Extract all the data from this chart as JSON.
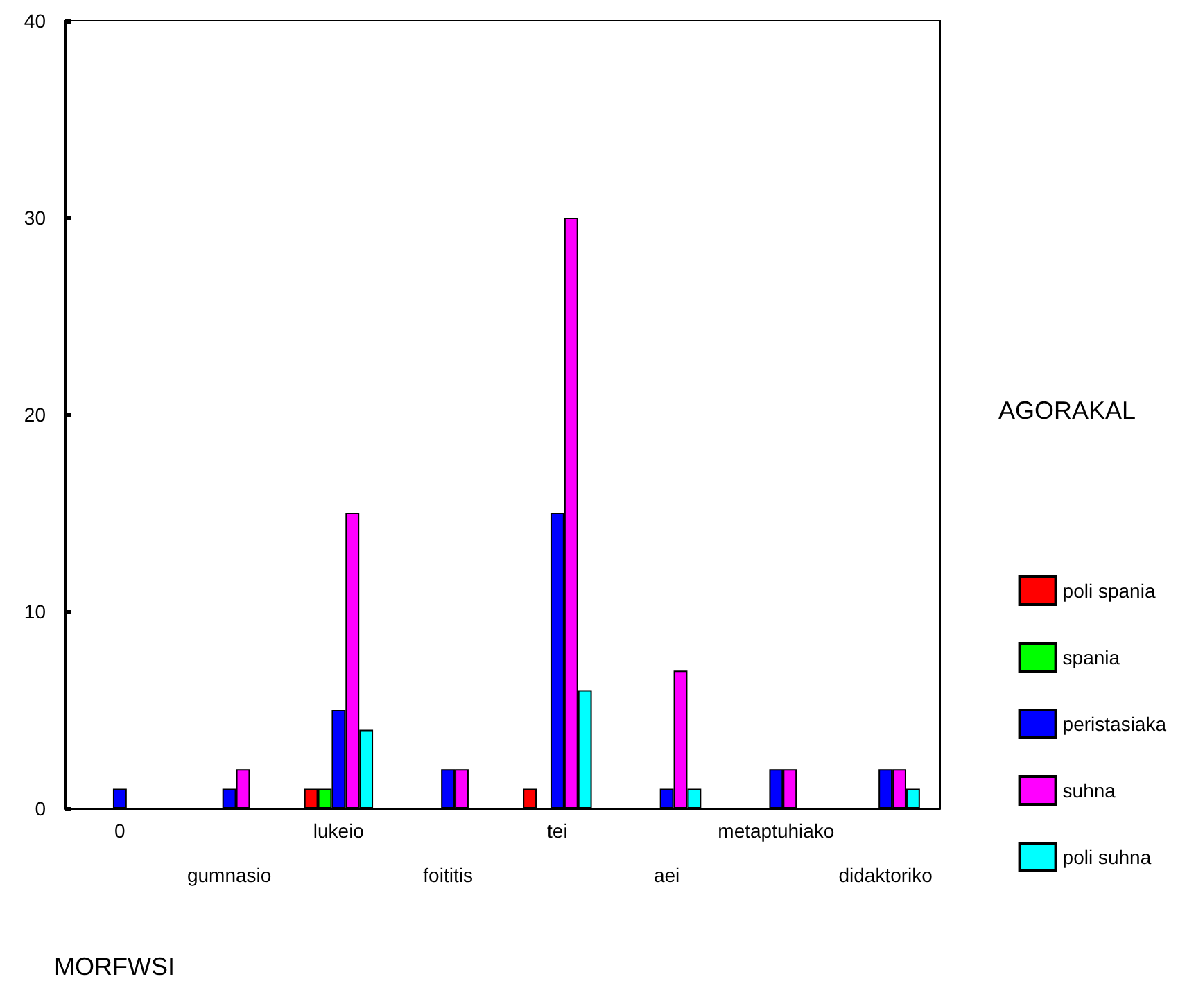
{
  "chart_data": {
    "type": "bar",
    "xlabel": "MORFWSI",
    "legend_title": "AGORAKAL",
    "categories": [
      "0",
      "gumnasio",
      "lukeio",
      "foititis",
      "tei",
      "aei",
      "metaptuhiako",
      "didaktoriko"
    ],
    "series": [
      {
        "name": "poli spania",
        "color": "#ff0000",
        "values": [
          null,
          null,
          1,
          null,
          1,
          null,
          null,
          null
        ]
      },
      {
        "name": "spania",
        "color": "#00ff00",
        "values": [
          null,
          null,
          1,
          null,
          null,
          null,
          null,
          null
        ]
      },
      {
        "name": "peristasiaka",
        "color": "#0000ff",
        "values": [
          1,
          1,
          5,
          2,
          15,
          1,
          2,
          2
        ]
      },
      {
        "name": "suhna",
        "color": "#ff00ff",
        "values": [
          null,
          2,
          15,
          2,
          30,
          7,
          2,
          2
        ]
      },
      {
        "name": "poli suhna",
        "color": "#00ffff",
        "values": [
          null,
          null,
          4,
          null,
          6,
          1,
          null,
          1
        ]
      }
    ],
    "ylim": [
      0,
      40
    ],
    "yticks": [
      0,
      10,
      20,
      30,
      40
    ],
    "grid": false,
    "legend": "right"
  }
}
